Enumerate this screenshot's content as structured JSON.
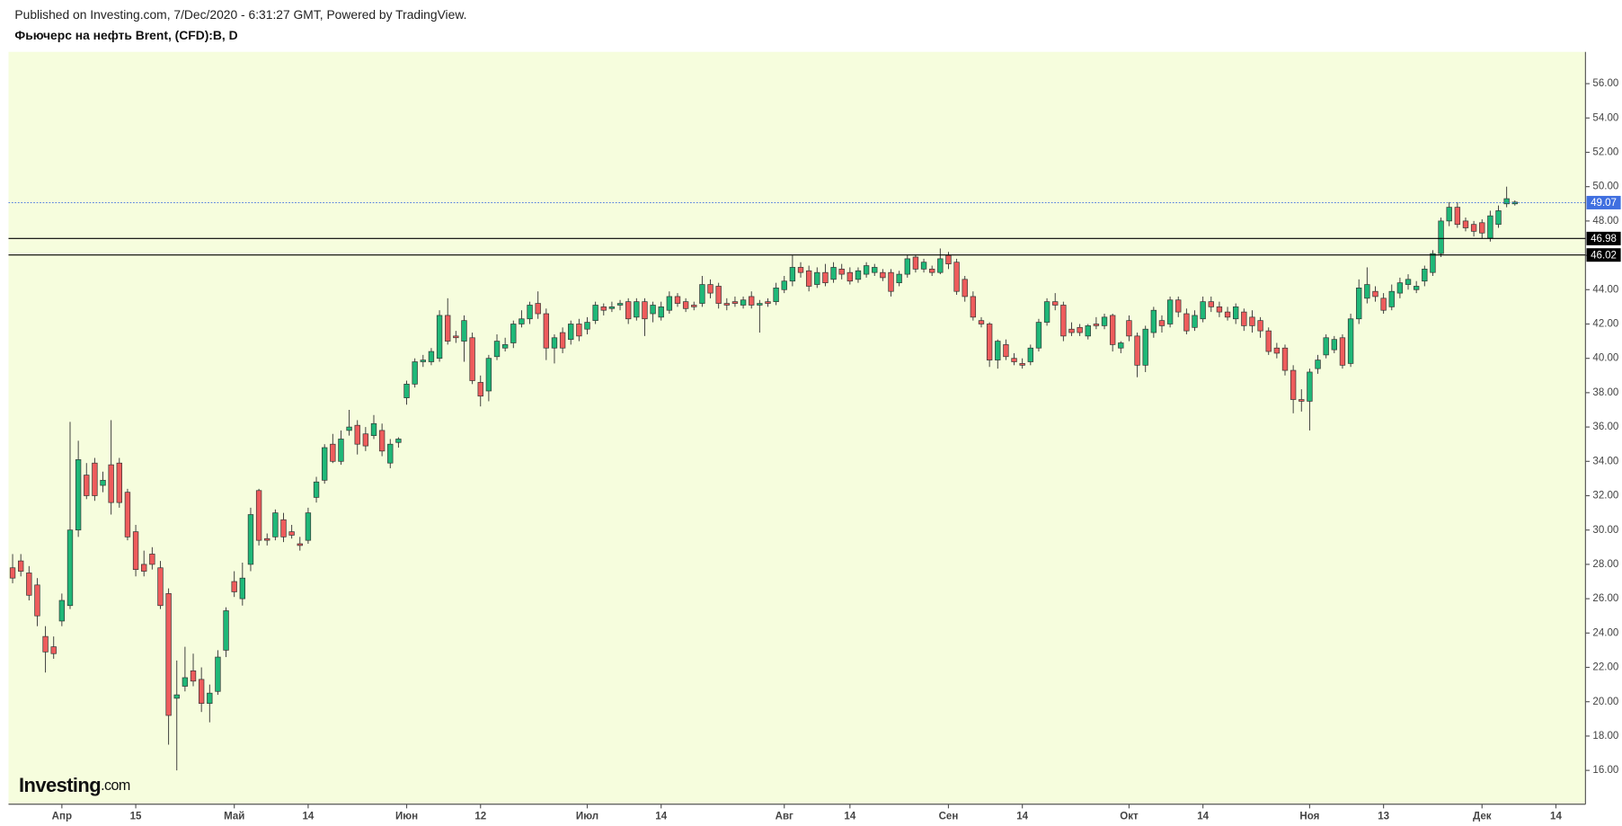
{
  "chart_data": {
    "type": "candlestick",
    "source": "Published on Investing.com, 7/Dec/2020 - 6:31:27 GMT, Powered by TradingView.",
    "title": "Фьючерс на нефть Brent, (CFD):B, D",
    "logo": "Investing",
    "logo_suffix": ".com",
    "up_color": "#1fb878",
    "down_color": "#ee5c5c",
    "background": "#f6fddd",
    "open": [
      27.8,
      28.2,
      27.5,
      26.8,
      23.8,
      23.2,
      24.7,
      25.6,
      30.0,
      33.2,
      33.9,
      32.6,
      33.8,
      33.9,
      32.2,
      29.9,
      28.0,
      28.6,
      27.8,
      26.3,
      20.2,
      20.9,
      21.8,
      21.3,
      19.9,
      20.6,
      23.0,
      27.0,
      26.0,
      28.0,
      32.3,
      29.5,
      29.6,
      30.6,
      29.9,
      29.2,
      29.4,
      31.9,
      32.9,
      35.0,
      34.0,
      35.8,
      36.1,
      35.6,
      35.5,
      35.8,
      33.9,
      35.1,
      37.7,
      38.5,
      39.8,
      39.8,
      40.0,
      42.5,
      41.3,
      41.0,
      41.2,
      38.6,
      38.1,
      40.1,
      40.6,
      40.9,
      42.0,
      42.3,
      43.2,
      42.6,
      40.6,
      41.5,
      41.1,
      42.0,
      41.7,
      42.2,
      43.0,
      42.9,
      43.1,
      43.3,
      42.4,
      43.3,
      42.6,
      42.4,
      42.8,
      43.6,
      43.3,
      43.1,
      43.2,
      44.3,
      44.2,
      43.2,
      43.3,
      43.1,
      43.6,
      43.1,
      43.3,
      43.3,
      44.0,
      44.5,
      45.3,
      45.1,
      44.3,
      45.0,
      44.6,
      45.2,
      45.0,
      44.6,
      44.9,
      45.0,
      45.0,
      45.0,
      44.4,
      44.9,
      45.9,
      45.2,
      45.2,
      45.0,
      46.0,
      45.6,
      44.6,
      43.6,
      42.2,
      42.0,
      39.9,
      40.8,
      40.0,
      39.7,
      39.8,
      40.6,
      42.1,
      43.3,
      43.1,
      41.7,
      41.8,
      41.3,
      42.0,
      41.9,
      42.5,
      40.6,
      42.2,
      41.3,
      39.6,
      41.5,
      42.2,
      42.0,
      43.4,
      42.6,
      41.8,
      42.3,
      43.3,
      43.0,
      42.7,
      42.3,
      42.7,
      42.4,
      42.2,
      41.6,
      40.6,
      40.6,
      39.3,
      37.6,
      37.5,
      39.4,
      40.2,
      40.5,
      41.2,
      39.7,
      42.3,
      43.5,
      43.9,
      43.5,
      43.0,
      43.8,
      44.3,
      44.0,
      44.5,
      45.0,
      46.1,
      48.0,
      48.8,
      48.0,
      47.8,
      47.9,
      47.0,
      47.8,
      49.0,
      49.0
    ],
    "high": [
      28.6,
      28.6,
      27.9,
      27.2,
      24.4,
      23.8,
      26.3,
      36.3,
      35.2,
      33.9,
      34.2,
      33.4,
      36.4,
      34.2,
      32.4,
      30.3,
      28.8,
      29.0,
      28.2,
      26.6,
      22.4,
      23.2,
      22.8,
      22.0,
      21.0,
      23.0,
      25.5,
      27.6,
      28.1,
      31.3,
      32.4,
      29.8,
      31.2,
      31.0,
      30.3,
      29.6,
      31.3,
      33.1,
      35.0,
      35.6,
      35.8,
      37.0,
      36.4,
      36.0,
      36.7,
      36.2,
      35.3,
      35.4,
      38.7,
      40.0,
      40.2,
      40.6,
      42.8,
      43.5,
      41.6,
      42.5,
      41.5,
      39.0,
      40.2,
      41.4,
      41.2,
      42.2,
      42.8,
      43.3,
      43.9,
      42.9,
      41.4,
      41.8,
      42.2,
      42.3,
      42.4,
      43.3,
      43.2,
      43.3,
      43.4,
      43.5,
      43.5,
      43.5,
      43.3,
      43.3,
      43.9,
      43.8,
      43.5,
      43.3,
      44.8,
      44.6,
      44.4,
      43.5,
      43.6,
      43.6,
      43.9,
      43.4,
      43.5,
      44.4,
      44.8,
      46.0,
      45.6,
      45.4,
      45.3,
      45.5,
      45.6,
      45.5,
      45.3,
      45.3,
      45.6,
      45.5,
      45.2,
      45.2,
      45.1,
      46.0,
      46.0,
      45.8,
      45.4,
      46.4,
      46.2,
      45.8,
      44.8,
      43.9,
      42.4,
      42.1,
      41.1,
      41.1,
      40.3,
      40.0,
      40.8,
      42.3,
      43.5,
      43.8,
      43.3,
      42.1,
      42.0,
      42.0,
      42.4,
      42.6,
      42.6,
      41.0,
      42.5,
      41.5,
      41.9,
      43.0,
      42.5,
      43.6,
      43.6,
      42.9,
      42.8,
      43.6,
      43.6,
      43.3,
      43.0,
      43.2,
      42.9,
      42.8,
      42.4,
      41.8,
      40.9,
      40.8,
      39.6,
      38.2,
      39.4,
      40.2,
      41.4,
      41.3,
      41.4,
      42.6,
      44.6,
      45.3,
      44.2,
      43.8,
      44.3,
      44.7,
      44.9,
      44.5,
      45.4,
      46.3,
      48.2,
      49.1,
      49.1,
      48.2,
      48.0,
      48.1,
      48.6,
      48.9,
      50.0,
      49.2
    ],
    "low": [
      26.9,
      27.3,
      25.9,
      24.4,
      21.7,
      22.5,
      24.4,
      25.4,
      29.6,
      31.8,
      31.7,
      32.2,
      30.9,
      31.3,
      29.4,
      27.3,
      27.3,
      27.7,
      25.4,
      17.5,
      16.0,
      20.6,
      20.9,
      19.4,
      18.8,
      20.4,
      22.6,
      26.1,
      25.6,
      27.6,
      29.1,
      29.1,
      29.4,
      29.3,
      29.5,
      28.8,
      29.2,
      31.6,
      32.7,
      33.9,
      33.8,
      35.5,
      34.4,
      34.6,
      35.3,
      34.3,
      33.6,
      34.8,
      37.3,
      38.3,
      39.5,
      39.6,
      39.8,
      40.8,
      40.9,
      39.8,
      38.5,
      37.2,
      37.5,
      39.9,
      40.4,
      40.6,
      41.8,
      42.0,
      42.3,
      39.9,
      39.7,
      40.3,
      40.8,
      41.0,
      41.4,
      42.0,
      42.5,
      42.7,
      42.8,
      42.0,
      42.2,
      41.3,
      42.1,
      42.2,
      42.6,
      43.0,
      42.7,
      42.8,
      43.0,
      43.5,
      42.9,
      42.8,
      43.0,
      42.9,
      42.9,
      41.5,
      43.0,
      43.1,
      43.8,
      44.2,
      44.7,
      43.9,
      44.1,
      44.2,
      44.4,
      44.6,
      44.3,
      44.4,
      44.7,
      44.8,
      44.5,
      43.6,
      44.2,
      44.7,
      45.0,
      45.0,
      44.8,
      44.9,
      45.2,
      43.7,
      43.3,
      42.2,
      41.8,
      39.5,
      39.4,
      39.9,
      39.6,
      39.4,
      39.6,
      40.4,
      41.9,
      42.8,
      41.0,
      41.3,
      41.3,
      41.1,
      41.7,
      41.7,
      40.4,
      40.3,
      41.0,
      38.9,
      39.2,
      41.2,
      41.5,
      41.8,
      42.4,
      41.4,
      41.6,
      42.1,
      42.7,
      42.4,
      42.2,
      42.0,
      41.6,
      41.5,
      41.2,
      40.2,
      40.0,
      39.0,
      36.8,
      36.9,
      35.8,
      39.1,
      40.0,
      40.3,
      39.4,
      39.5,
      42.0,
      43.2,
      43.3,
      42.6,
      42.8,
      43.5,
      44.0,
      43.8,
      44.2,
      44.8,
      45.9,
      47.7,
      47.6,
      47.4,
      47.1,
      47.0,
      46.8,
      47.6,
      48.8,
      48.9
    ],
    "close": [
      27.2,
      27.6,
      26.2,
      25.0,
      22.9,
      22.8,
      25.9,
      30.0,
      34.1,
      32.0,
      32.0,
      32.9,
      31.6,
      31.6,
      29.6,
      27.7,
      27.6,
      28.0,
      25.6,
      19.2,
      20.4,
      21.4,
      21.2,
      19.9,
      20.5,
      22.6,
      25.3,
      26.4,
      27.2,
      30.9,
      29.4,
      29.4,
      31.0,
      29.6,
      29.7,
      29.1,
      31.0,
      32.8,
      34.8,
      34.0,
      35.3,
      36.0,
      35.0,
      34.9,
      36.2,
      34.6,
      35.0,
      35.3,
      38.5,
      39.8,
      39.9,
      40.4,
      42.5,
      41.0,
      41.2,
      42.2,
      38.7,
      37.8,
      40.0,
      41.0,
      40.8,
      42.0,
      42.3,
      43.1,
      42.6,
      40.6,
      41.2,
      40.6,
      42.0,
      41.3,
      42.1,
      43.1,
      42.8,
      43.0,
      43.2,
      42.3,
      43.3,
      42.3,
      43.1,
      43.0,
      43.6,
      43.2,
      42.9,
      43.0,
      44.3,
      43.8,
      43.2,
      43.1,
      43.2,
      43.4,
      43.1,
      43.2,
      43.2,
      44.1,
      44.5,
      45.3,
      45.0,
      44.2,
      45.0,
      44.4,
      45.3,
      44.9,
      44.5,
      45.1,
      45.4,
      45.3,
      44.7,
      43.9,
      44.9,
      45.8,
      45.2,
      45.6,
      45.0,
      45.8,
      45.5,
      43.9,
      43.6,
      42.4,
      42.0,
      39.9,
      41.0,
      40.1,
      39.8,
      39.6,
      40.6,
      42.1,
      43.3,
      43.1,
      41.3,
      41.5,
      41.5,
      41.9,
      41.9,
      42.4,
      40.8,
      40.9,
      41.3,
      39.6,
      41.7,
      42.8,
      41.9,
      43.4,
      42.7,
      41.6,
      42.5,
      43.3,
      43.0,
      42.7,
      42.4,
      43.0,
      41.9,
      41.9,
      41.6,
      40.4,
      40.3,
      39.3,
      37.6,
      37.5,
      39.2,
      39.9,
      41.2,
      41.1,
      39.6,
      42.3,
      44.1,
      44.3,
      43.6,
      42.8,
      43.9,
      44.4,
      44.6,
      44.2,
      45.2,
      46.1,
      48.0,
      48.8,
      47.8,
      47.6,
      47.4,
      47.3,
      48.3,
      48.6,
      49.3,
      49.1
    ],
    "xlim": [
      -0.5,
      191.6
    ],
    "xticks": [
      {
        "value": 6,
        "label": "Апр"
      },
      {
        "value": 15,
        "label": "15"
      },
      {
        "value": 27,
        "label": "Май"
      },
      {
        "value": 36,
        "label": "14"
      },
      {
        "value": 48,
        "label": "Июн"
      },
      {
        "value": 57,
        "label": "12"
      },
      {
        "value": 70,
        "label": "Июл"
      },
      {
        "value": 79,
        "label": "14"
      },
      {
        "value": 94,
        "label": "Авг"
      },
      {
        "value": 102,
        "label": "14"
      },
      {
        "value": 114,
        "label": "Сен"
      },
      {
        "value": 123,
        "label": "14"
      },
      {
        "value": 136,
        "label": "Окт"
      },
      {
        "value": 145,
        "label": "14"
      },
      {
        "value": 158,
        "label": "Ноя"
      },
      {
        "value": 167,
        "label": "13"
      },
      {
        "value": 179,
        "label": "Дек"
      },
      {
        "value": 188,
        "label": "14"
      }
    ],
    "ylim": [
      14.03,
      57.85
    ],
    "yticks": [
      {
        "value": 16,
        "label": "16.00"
      },
      {
        "value": 18,
        "label": "18.00"
      },
      {
        "value": 20,
        "label": "20.00"
      },
      {
        "value": 22,
        "label": "22.00"
      },
      {
        "value": 24,
        "label": "24.00"
      },
      {
        "value": 26,
        "label": "26.00"
      },
      {
        "value": 28,
        "label": "28.00"
      },
      {
        "value": 30,
        "label": "30.00"
      },
      {
        "value": 32,
        "label": "32.00"
      },
      {
        "value": 34,
        "label": "34.00"
      },
      {
        "value": 36,
        "label": "36.00"
      },
      {
        "value": 38,
        "label": "38.00"
      },
      {
        "value": 40,
        "label": "40.00"
      },
      {
        "value": 42,
        "label": "42.00"
      },
      {
        "value": 44,
        "label": "44.00"
      },
      {
        "value": 46,
        "label": "46.00"
      },
      {
        "value": 48,
        "label": "48.00"
      },
      {
        "value": 50,
        "label": "50.00"
      },
      {
        "value": 52,
        "label": "52.00"
      },
      {
        "value": 54,
        "label": "54.00"
      },
      {
        "value": 56,
        "label": "56.00"
      }
    ],
    "hlines": [
      {
        "value": 49.07,
        "color": "#3f6fe0",
        "dashed": true
      },
      {
        "value": 46.98,
        "color": "#000000",
        "dashed": false
      },
      {
        "value": 46.02,
        "color": "#000000",
        "dashed": false
      }
    ]
  }
}
